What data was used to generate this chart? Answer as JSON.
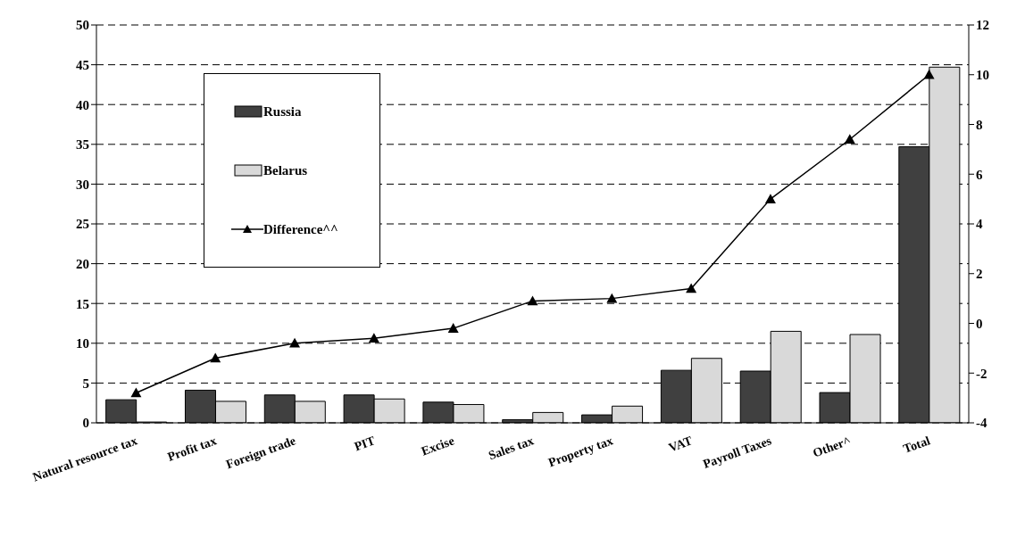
{
  "chart_data": {
    "type": "bar",
    "categories": [
      "Natural resource tax",
      "Profit tax",
      "Foreign trade",
      "PIT",
      "Excise",
      "Sales tax",
      "Property tax",
      "VAT",
      "Payroll Taxes",
      "Other^",
      "Total"
    ],
    "series": [
      {
        "name": "Russia",
        "color": "#404040",
        "values": [
          2.9,
          4.1,
          3.5,
          3.5,
          2.6,
          0.4,
          1.0,
          6.6,
          6.5,
          3.8,
          34.7
        ]
      },
      {
        "name": "Belarus",
        "color": "#d9d9d9",
        "values": [
          0.1,
          2.7,
          2.7,
          3.0,
          2.3,
          1.3,
          2.1,
          8.1,
          11.5,
          11.1,
          44.7
        ]
      },
      {
        "name": "Difference^^",
        "type": "line",
        "axis": "y2",
        "color": "#000000",
        "marker": "triangle",
        "values": [
          -2.8,
          -1.4,
          -0.8,
          -0.6,
          -0.2,
          0.9,
          1.0,
          1.4,
          5.0,
          7.4,
          10.0
        ]
      }
    ],
    "ylim": [
      0,
      50
    ],
    "yticks": [
      0,
      5,
      10,
      15,
      20,
      25,
      30,
      35,
      40,
      45,
      50
    ],
    "y2lim": [
      -4,
      12
    ],
    "y2ticks": [
      -4,
      -2,
      0,
      2,
      4,
      6,
      8,
      10,
      12
    ],
    "grid": "y",
    "legend": "top left"
  }
}
